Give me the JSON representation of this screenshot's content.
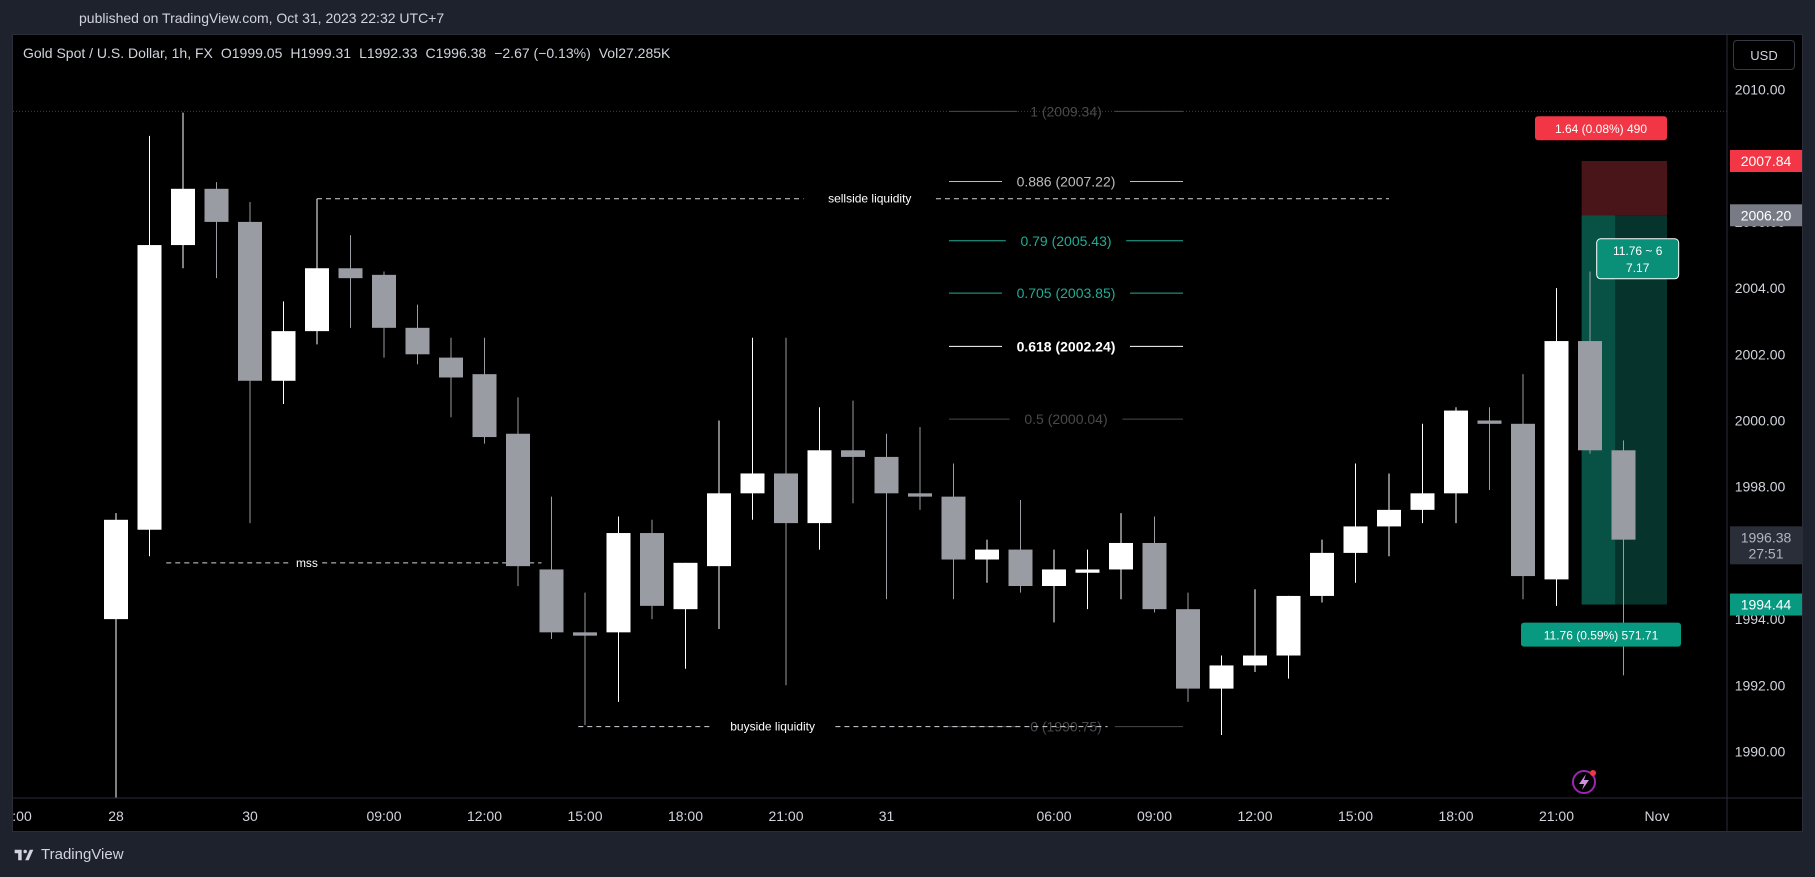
{
  "header": {
    "published": "published on TradingView.com, Oct 31, 2023 22:32 UTC+7"
  },
  "legend": {
    "symbol": "Gold Spot / U.S. Dollar, 1h, FX",
    "open": "O1999.05",
    "high": "H1999.31",
    "low": "L1992.33",
    "close": "C1996.38",
    "change": "−2.67 (−0.13%)",
    "volume": "Vol27.285K"
  },
  "currency_button": "USD",
  "footer": {
    "brand": "TradingView"
  },
  "colors": {
    "bull": "#ffffff",
    "bear": "#9a9ca3",
    "stop_zone": "#4a1518",
    "target_zone": "#06332c",
    "red_label": "#f23645",
    "green_label": "#089981",
    "fib_green": "#22ab94",
    "grid_line": "#555555"
  },
  "chart_data": {
    "type": "candlestick",
    "symbol": "Gold Spot / U.S. Dollar",
    "interval": "1h",
    "ylim": [
      1988.5,
      2011.5
    ],
    "y_ticks": [
      "2010.00",
      "2008.00",
      "2006.00",
      "2004.00",
      "2002.00",
      "2000.00",
      "1998.00",
      "1996.00",
      "1994.00",
      "1992.00",
      "1990.00"
    ],
    "x_ticks": [
      {
        "label": ":00",
        "i": -3
      },
      {
        "label": "28",
        "i": 0
      },
      {
        "label": "30",
        "i": 4
      },
      {
        "label": "09:00",
        "i": 8
      },
      {
        "label": "12:00",
        "i": 11
      },
      {
        "label": "15:00",
        "i": 14
      },
      {
        "label": "18:00",
        "i": 17
      },
      {
        "label": "21:00",
        "i": 20
      },
      {
        "label": "31",
        "i": 23
      },
      {
        "label": "06:00",
        "i": 28
      },
      {
        "label": "09:00",
        "i": 31
      },
      {
        "label": "12:00",
        "i": 34
      },
      {
        "label": "15:00",
        "i": 37
      },
      {
        "label": "18:00",
        "i": 40
      },
      {
        "label": "21:00",
        "i": 43
      },
      {
        "label": "Nov",
        "i": 46
      }
    ],
    "candles": [
      {
        "o": 1994.0,
        "h": 1997.2,
        "l": 1988.5,
        "c": 1997.0
      },
      {
        "o": 1996.7,
        "h": 2008.6,
        "l": 1995.9,
        "c": 2005.3
      },
      {
        "o": 2005.3,
        "h": 2009.3,
        "l": 2004.6,
        "c": 2007.0
      },
      {
        "o": 2007.0,
        "h": 2007.2,
        "l": 2004.3,
        "c": 2006.0
      },
      {
        "o": 2006.0,
        "h": 2006.6,
        "l": 1996.9,
        "c": 2001.2
      },
      {
        "o": 2001.2,
        "h": 2003.6,
        "l": 2000.5,
        "c": 2002.7
      },
      {
        "o": 2002.7,
        "h": 2006.7,
        "l": 2002.3,
        "c": 2004.6
      },
      {
        "o": 2004.6,
        "h": 2005.6,
        "l": 2002.8,
        "c": 2004.3
      },
      {
        "o": 2004.4,
        "h": 2004.5,
        "l": 2001.9,
        "c": 2002.8
      },
      {
        "o": 2002.8,
        "h": 2003.5,
        "l": 2001.7,
        "c": 2002.0
      },
      {
        "o": 2001.9,
        "h": 2002.5,
        "l": 2000.1,
        "c": 2001.3
      },
      {
        "o": 2001.4,
        "h": 2002.5,
        "l": 1999.3,
        "c": 1999.5
      },
      {
        "o": 1999.6,
        "h": 2000.7,
        "l": 1995.0,
        "c": 1995.6
      },
      {
        "o": 1995.5,
        "h": 1997.7,
        "l": 1993.4,
        "c": 1993.6
      },
      {
        "o": 1993.6,
        "h": 1994.8,
        "l": 1990.8,
        "c": 1993.5
      },
      {
        "o": 1993.6,
        "h": 1997.1,
        "l": 1991.5,
        "c": 1996.6
      },
      {
        "o": 1996.6,
        "h": 1997.0,
        "l": 1994.0,
        "c": 1994.4
      },
      {
        "o": 1994.3,
        "h": 1995.7,
        "l": 1992.5,
        "c": 1995.7
      },
      {
        "o": 1995.6,
        "h": 2000.0,
        "l": 1993.7,
        "c": 1997.8
      },
      {
        "o": 1997.8,
        "h": 2002.5,
        "l": 1997.0,
        "c": 1998.4
      },
      {
        "o": 1998.4,
        "h": 2002.5,
        "l": 1992.0,
        "c": 1996.9
      },
      {
        "o": 1996.9,
        "h": 2000.4,
        "l": 1996.1,
        "c": 1999.1
      },
      {
        "o": 1999.1,
        "h": 2000.6,
        "l": 1997.5,
        "c": 1998.9
      },
      {
        "o": 1998.9,
        "h": 1999.6,
        "l": 1994.6,
        "c": 1997.8
      },
      {
        "o": 1997.8,
        "h": 1999.8,
        "l": 1997.3,
        "c": 1997.7
      },
      {
        "o": 1997.7,
        "h": 1998.7,
        "l": 1994.6,
        "c": 1995.8
      },
      {
        "o": 1995.8,
        "h": 1996.4,
        "l": 1995.1,
        "c": 1996.1
      },
      {
        "o": 1996.1,
        "h": 1997.6,
        "l": 1994.8,
        "c": 1995.0
      },
      {
        "o": 1995.0,
        "h": 1996.1,
        "l": 1993.9,
        "c": 1995.5
      },
      {
        "o": 1995.4,
        "h": 1996.1,
        "l": 1994.3,
        "c": 1995.5
      },
      {
        "o": 1995.5,
        "h": 1997.2,
        "l": 1994.6,
        "c": 1996.3
      },
      {
        "o": 1996.3,
        "h": 1997.1,
        "l": 1994.2,
        "c": 1994.3
      },
      {
        "o": 1994.3,
        "h": 1994.8,
        "l": 1991.5,
        "c": 1991.9
      },
      {
        "o": 1991.9,
        "h": 1992.9,
        "l": 1990.5,
        "c": 1992.6
      },
      {
        "o": 1992.6,
        "h": 1994.9,
        "l": 1992.4,
        "c": 1992.9
      },
      {
        "o": 1992.9,
        "h": 1994.7,
        "l": 1992.2,
        "c": 1994.7
      },
      {
        "o": 1994.7,
        "h": 1996.4,
        "l": 1994.5,
        "c": 1996.0
      },
      {
        "o": 1996.0,
        "h": 1998.7,
        "l": 1995.1,
        "c": 1996.8
      },
      {
        "o": 1996.8,
        "h": 1998.4,
        "l": 1995.9,
        "c": 1997.3
      },
      {
        "o": 1997.3,
        "h": 1999.9,
        "l": 1996.9,
        "c": 1997.8
      },
      {
        "o": 1997.8,
        "h": 2000.4,
        "l": 1996.9,
        "c": 2000.3
      },
      {
        "o": 2000.0,
        "h": 2000.4,
        "l": 1997.9,
        "c": 1999.9
      },
      {
        "o": 1999.9,
        "h": 2001.4,
        "l": 1994.6,
        "c": 1995.3
      },
      {
        "o": 1995.2,
        "h": 2004.0,
        "l": 1994.4,
        "c": 2002.4
      },
      {
        "o": 2002.4,
        "h": 2004.5,
        "l": 1999.0,
        "c": 1999.1
      },
      {
        "o": 1999.1,
        "h": 1999.4,
        "l": 1992.3,
        "c": 1996.4
      }
    ],
    "fibonacci": [
      {
        "ratio": "1",
        "price": "2009.34",
        "label": "1 (2009.34)",
        "style": "faded"
      },
      {
        "ratio": "0.886",
        "price": "2007.22",
        "label": "0.886 (2007.22)",
        "style": "grey"
      },
      {
        "ratio": "0.79",
        "price": "2005.43",
        "label": "0.79 (2005.43)",
        "style": "green"
      },
      {
        "ratio": "0.705",
        "price": "2003.85",
        "label": "0.705 (2003.85)",
        "style": "green"
      },
      {
        "ratio": "0.618",
        "price": "2002.24",
        "label": "0.618 (2002.24)",
        "style": "white"
      },
      {
        "ratio": "0.5",
        "price": "2000.04",
        "label": "0.5 (2000.04)",
        "style": "faded"
      },
      {
        "ratio": "0",
        "price": "1990.75",
        "label": "0 (1990.75)",
        "style": "faded"
      }
    ],
    "annotations": [
      {
        "label": "sellside liquidity",
        "price": 2006.7
      },
      {
        "label": "mss",
        "price": 1995.7
      },
      {
        "label": "buyside liquidity",
        "price": 1990.75
      }
    ],
    "short_position": {
      "entry": 2006.2,
      "stop": 2007.84,
      "target": 1994.44,
      "stop_label": "1.64 (0.08%) 490",
      "target_label": "11.76 (0.59%) 571.71",
      "ratio_label_line1": "11.76 ~ 6",
      "ratio_label_line2": "7.17"
    },
    "price_labels": {
      "stop": "2007.84",
      "entry": "2006.20",
      "last": "1996.38",
      "countdown": "27:51",
      "target": "1994.44"
    }
  }
}
